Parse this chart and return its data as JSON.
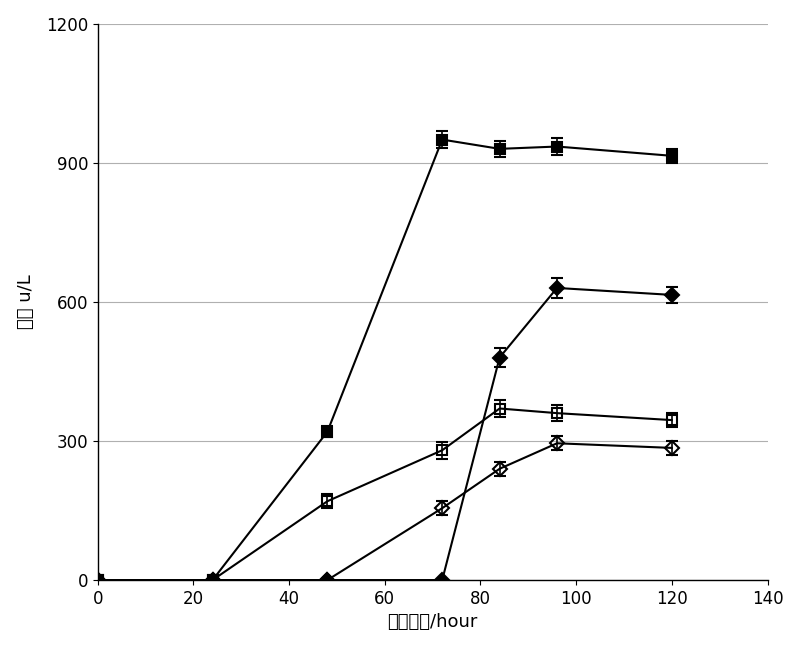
{
  "series": [
    {
      "label": "filled_square",
      "x": [
        0,
        24,
        48,
        72,
        84,
        96,
        120
      ],
      "y": [
        0,
        0,
        320,
        950,
        930,
        935,
        915
      ],
      "yerr": [
        0,
        0,
        12,
        18,
        18,
        18,
        15
      ],
      "marker": "s",
      "fillstyle": "full",
      "color": "#000000",
      "markersize": 7,
      "linewidth": 1.5
    },
    {
      "label": "filled_diamond",
      "x": [
        0,
        24,
        48,
        72,
        84,
        96,
        120
      ],
      "y": [
        0,
        0,
        0,
        0,
        480,
        630,
        615
      ],
      "yerr": [
        0,
        0,
        0,
        0,
        20,
        22,
        18
      ],
      "marker": "D",
      "fillstyle": "full",
      "color": "#000000",
      "markersize": 7,
      "linewidth": 1.5
    },
    {
      "label": "open_square",
      "x": [
        0,
        24,
        48,
        72,
        84,
        96,
        120
      ],
      "y": [
        0,
        0,
        170,
        280,
        370,
        360,
        345
      ],
      "yerr": [
        0,
        0,
        15,
        18,
        18,
        18,
        15
      ],
      "marker": "s",
      "fillstyle": "none",
      "color": "#000000",
      "markersize": 7,
      "linewidth": 1.5
    },
    {
      "label": "open_diamond",
      "x": [
        0,
        24,
        48,
        72,
        84,
        96,
        120
      ],
      "y": [
        0,
        0,
        0,
        155,
        240,
        295,
        285
      ],
      "yerr": [
        0,
        0,
        0,
        15,
        15,
        15,
        15
      ],
      "marker": "D",
      "fillstyle": "none",
      "color": "#000000",
      "markersize": 7,
      "linewidth": 1.5
    }
  ],
  "xlabel": "培养时间/hour",
  "ylabel": "酶活 u/L",
  "xlim": [
    0,
    140
  ],
  "ylim": [
    0,
    1200
  ],
  "xticks": [
    0,
    20,
    40,
    60,
    80,
    100,
    120,
    140
  ],
  "yticks": [
    0,
    300,
    600,
    900,
    1200
  ],
  "grid_color": "#b0b0b0",
  "background_color": "#ffffff",
  "xlabel_fontsize": 13,
  "ylabel_fontsize": 13,
  "tick_fontsize": 12
}
